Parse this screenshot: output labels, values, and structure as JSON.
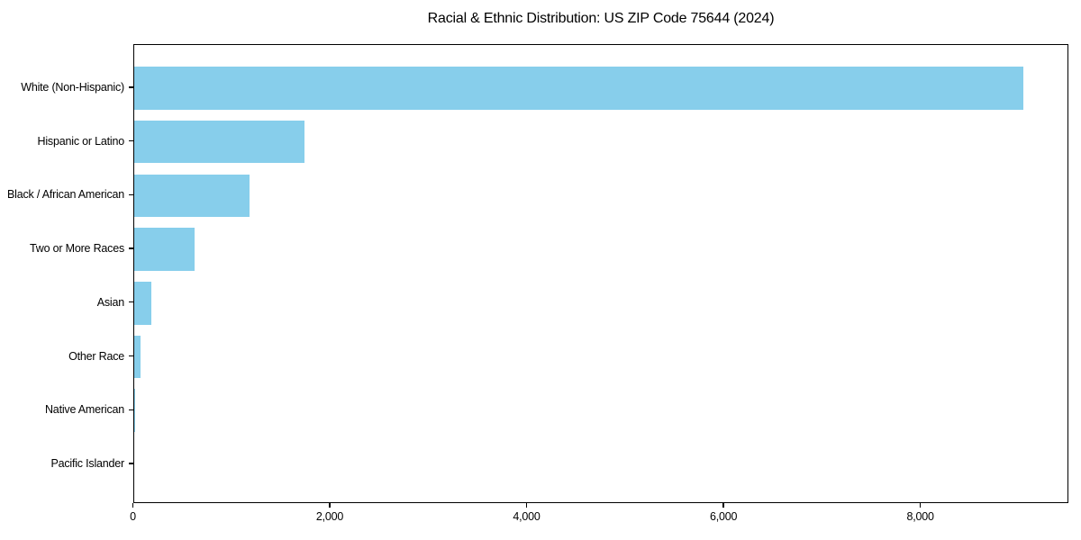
{
  "chart_data": {
    "type": "bar",
    "orientation": "horizontal",
    "title": "Racial & Ethnic Distribution: US ZIP Code 75644 (2024)",
    "categories": [
      "White (Non-Hispanic)",
      "Hispanic or Latino",
      "Black / African American",
      "Two or More Races",
      "Asian",
      "Other Race",
      "Native American",
      "Pacific Islander"
    ],
    "values": [
      9040,
      1730,
      1180,
      615,
      175,
      65,
      10,
      0
    ],
    "bar_color": "#87CEEB",
    "xlim": [
      0,
      9500
    ],
    "x_ticks": [
      0,
      2000,
      4000,
      6000,
      8000
    ],
    "x_tick_labels": [
      "0",
      "2,000",
      "4,000",
      "6,000",
      "8,000"
    ],
    "xlabel": "",
    "ylabel": "",
    "grid": false,
    "legend": false,
    "axis_color": "#000000",
    "text_color": "#000000",
    "background_color": "#ffffff"
  }
}
